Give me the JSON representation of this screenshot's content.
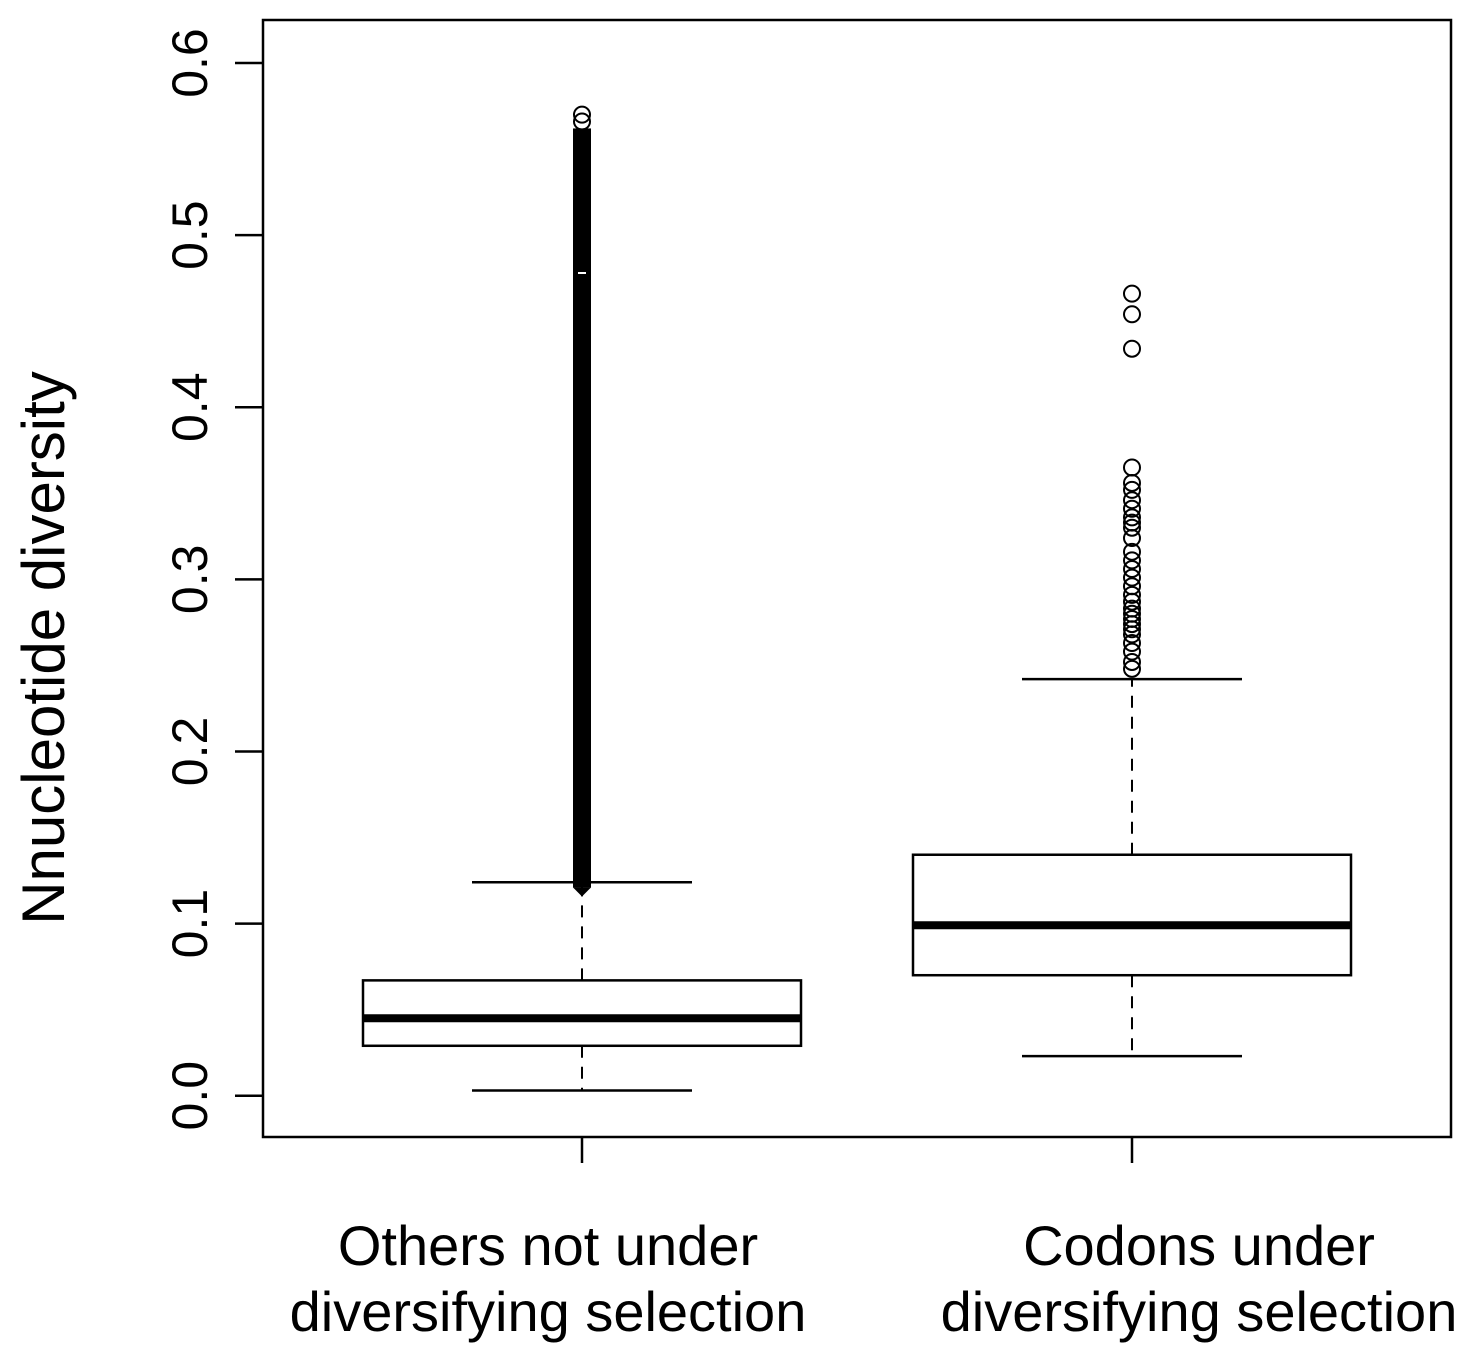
{
  "chart_data": {
    "type": "boxplot",
    "ylabel": "Nnucleotide diversity",
    "ylim": [
      -0.024,
      0.625
    ],
    "yticks": [
      "0.0",
      "0.1",
      "0.2",
      "0.3",
      "0.4",
      "0.5",
      "0.6"
    ],
    "categories": [
      [
        "Others not under",
        "diversifying selection"
      ],
      [
        "Codons under",
        "diversifying selection"
      ]
    ],
    "boxes": [
      {
        "whisker_low": 0.003,
        "q1": 0.029,
        "median": 0.045,
        "q3": 0.067,
        "whisker_high": 0.124,
        "outliers_dense_range": [
          0.121,
          0.562
        ],
        "outliers_top": [
          0.566,
          0.57
        ]
      },
      {
        "whisker_low": 0.023,
        "q1": 0.07,
        "median": 0.099,
        "q3": 0.14,
        "whisker_high": 0.242,
        "outliers": [
          0.248,
          0.252,
          0.258,
          0.263,
          0.268,
          0.271,
          0.274,
          0.277,
          0.28,
          0.283,
          0.287,
          0.291,
          0.296,
          0.301,
          0.306,
          0.311,
          0.316,
          0.324,
          0.33,
          0.333,
          0.336,
          0.341,
          0.346,
          0.352,
          0.356,
          0.365,
          0.434,
          0.454,
          0.466
        ]
      }
    ]
  }
}
